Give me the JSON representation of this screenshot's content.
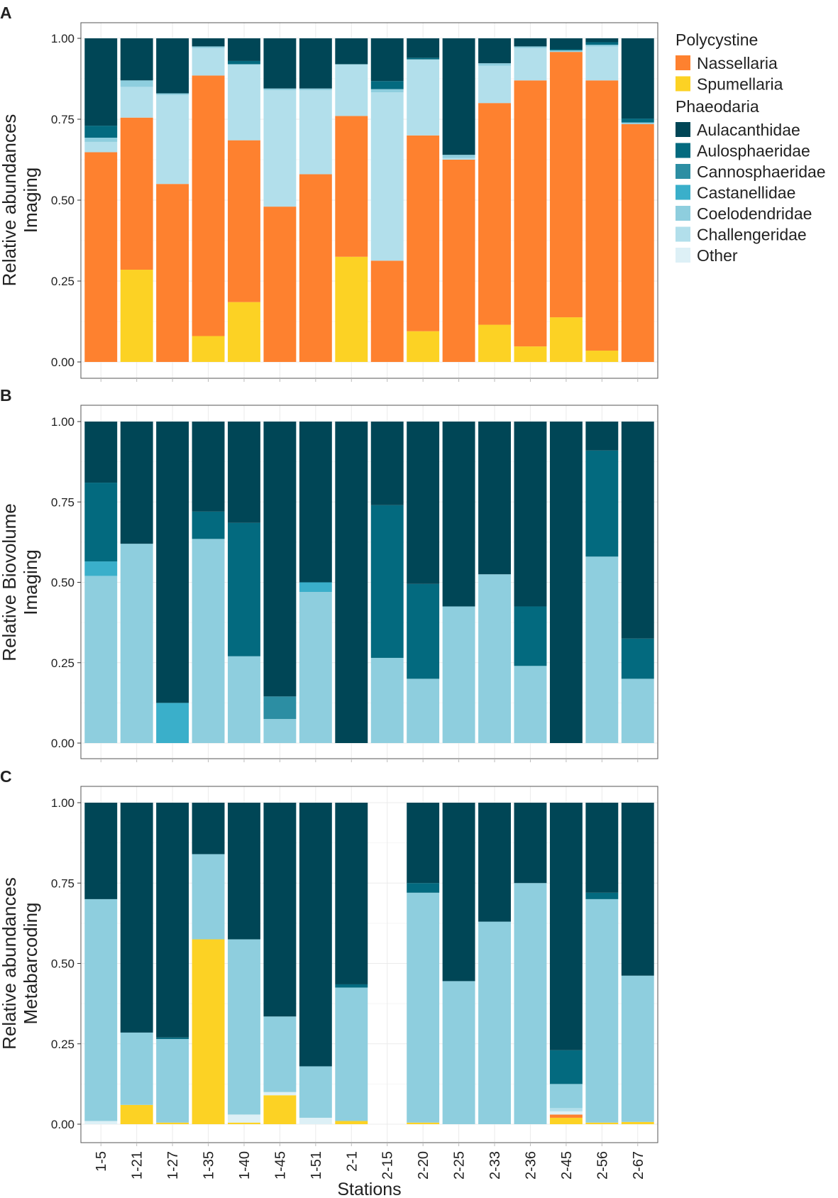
{
  "chart_data": {
    "type": "bar",
    "stacked": true,
    "categories": [
      "1-5",
      "1-21",
      "1-27",
      "1-35",
      "1-40",
      "1-45",
      "1-51",
      "2-1",
      "2-15",
      "2-20",
      "2-25",
      "2-33",
      "2-36",
      "2-45",
      "2-56",
      "2-67"
    ],
    "xlabel": "Stations",
    "ylim": [
      0,
      1
    ],
    "yticks": [
      "0.00",
      "0.25",
      "0.50",
      "0.75",
      "1.00"
    ],
    "stack_order": [
      "Spumellaria",
      "Nassellaria",
      "Other",
      "Challengeridae",
      "Coelodendridae",
      "Castanellidae",
      "Cannosphaeridae",
      "Aulosphaeridae",
      "Aulacanthidae"
    ],
    "legend": {
      "groups": [
        {
          "title": "Polycystine",
          "items": [
            "Nassellaria",
            "Spumellaria"
          ]
        },
        {
          "title": "Phaeodaria",
          "items": [
            "Aulacanthidae",
            "Aulosphaeridae",
            "Cannosphaeridae",
            "Castanellidae",
            "Coelodendridae",
            "Challengeridae",
            "Other"
          ]
        }
      ]
    },
    "colors": {
      "Nassellaria": "#FE812F",
      "Spumellaria": "#FCD224",
      "Aulacanthidae": "#004656",
      "Aulosphaeridae": "#036A7F",
      "Cannosphaeridae": "#2C8EA3",
      "Castanellidae": "#3AAFCA",
      "Coelodendridae": "#8ECEDE",
      "Challengeridae": "#B2DFEB",
      "Other": "#DDF0F6"
    },
    "panels": [
      {
        "letter": "A",
        "ylabel": [
          "Relative abundances",
          "Imaging"
        ],
        "series": [
          {
            "name": "Spumellaria",
            "values": [
              0,
              0.285,
              0,
              0.08,
              0.185,
              0,
              0,
              0.325,
              0,
              0.095,
              0,
              0.115,
              0.048,
              0.138,
              0.035,
              0
            ]
          },
          {
            "name": "Nassellaria",
            "values": [
              0.648,
              0.47,
              0.55,
              0.805,
              0.5,
              0.48,
              0.58,
              0.435,
              0.313,
              0.605,
              0.625,
              0.685,
              0.822,
              0.82,
              0.835,
              0.735
            ]
          },
          {
            "name": "Other",
            "values": [
              0,
              0,
              0,
              0,
              0,
              0,
              0,
              0,
              0,
              0,
              0,
              0,
              0,
              0,
              0,
              0
            ]
          },
          {
            "name": "Challengeridae",
            "values": [
              0.032,
              0.095,
              0.275,
              0.085,
              0.235,
              0.36,
              0.26,
              0.16,
              0.52,
              0.235,
              0.005,
              0.115,
              0.1,
              0,
              0.105,
              0
            ]
          },
          {
            "name": "Coelodendridae",
            "values": [
              0.013,
              0.02,
              0.005,
              0.005,
              0,
              0.005,
              0.005,
              0,
              0.01,
              0,
              0.01,
              0.008,
              0.005,
              0.005,
              0.005,
              0.005
            ]
          },
          {
            "name": "Castanellidae",
            "values": [
              0,
              0,
              0,
              0,
              0,
              0,
              0,
              0,
              0,
              0,
              0,
              0,
              0,
              0,
              0,
              0
            ]
          },
          {
            "name": "Cannosphaeridae",
            "values": [
              0,
              0,
              0,
              0,
              0,
              0,
              0,
              0,
              0,
              0,
              0,
              0,
              0,
              0,
              0,
              0
            ]
          },
          {
            "name": "Aulosphaeridae",
            "values": [
              0.037,
              0,
              0,
              0,
              0.01,
              0,
              0,
              0,
              0.025,
              0.005,
              0,
              0,
              0,
              0.003,
              0.008,
              0.012
            ]
          },
          {
            "name": "Aulacanthidae",
            "values": [
              0.27,
              0.13,
              0.17,
              0.025,
              0.07,
              0.155,
              0.155,
              0.08,
              0.132,
              0.06,
              0.36,
              0.077,
              0.025,
              0.034,
              0.012,
              0.248
            ]
          }
        ]
      },
      {
        "letter": "B",
        "ylabel": [
          "Relative Biovolume",
          "Imaging"
        ],
        "series": [
          {
            "name": "Spumellaria",
            "values": [
              0,
              0,
              0,
              0,
              0,
              0,
              0,
              0,
              0,
              0,
              0,
              0,
              0,
              0,
              0,
              0
            ]
          },
          {
            "name": "Nassellaria",
            "values": [
              0,
              0,
              0,
              0,
              0,
              0,
              0,
              0,
              0,
              0,
              0,
              0,
              0,
              0,
              0,
              0
            ]
          },
          {
            "name": "Other",
            "values": [
              0,
              0,
              0,
              0,
              0,
              0,
              0,
              0,
              0,
              0,
              0,
              0,
              0,
              0,
              0,
              0
            ]
          },
          {
            "name": "Challengeridae",
            "values": [
              0,
              0,
              0,
              0,
              0,
              0,
              0,
              0,
              0,
              0,
              0,
              0,
              0,
              0,
              0,
              0
            ]
          },
          {
            "name": "Coelodendridae",
            "values": [
              0.52,
              0.62,
              0,
              0.635,
              0.27,
              0.075,
              0.47,
              0,
              0.265,
              0.2,
              0.425,
              0.525,
              0.24,
              0,
              0.58,
              0.2
            ]
          },
          {
            "name": "Castanellidae",
            "values": [
              0.045,
              0,
              0.125,
              0,
              0,
              0,
              0.03,
              0,
              0,
              0,
              0,
              0,
              0,
              0,
              0,
              0
            ]
          },
          {
            "name": "Cannosphaeridae",
            "values": [
              0,
              0,
              0,
              0,
              0,
              0.07,
              0,
              0,
              0,
              0,
              0,
              0,
              0,
              0,
              0,
              0
            ]
          },
          {
            "name": "Aulosphaeridae",
            "values": [
              0.245,
              0,
              0,
              0.085,
              0.415,
              0,
              0,
              0,
              0.475,
              0.295,
              0,
              0,
              0.185,
              0,
              0.33,
              0.125
            ]
          },
          {
            "name": "Aulacanthidae",
            "values": [
              0.19,
              0.38,
              0.875,
              0.28,
              0.315,
              0.855,
              0.5,
              1.0,
              0.26,
              0.505,
              0.575,
              0.475,
              0.575,
              1.0,
              0.09,
              0.675
            ]
          }
        ]
      },
      {
        "letter": "C",
        "ylabel": [
          "Relative abundances",
          "Metabarcoding"
        ],
        "series": [
          {
            "name": "Spumellaria",
            "values": [
              0,
              0.06,
              0.005,
              0.575,
              0.005,
              0.09,
              0,
              0.01,
              0,
              0.005,
              0,
              0,
              0,
              0.02,
              0.005,
              0.007
            ]
          },
          {
            "name": "Nassellaria",
            "values": [
              0,
              0,
              0,
              0,
              0,
              0,
              0,
              0,
              0,
              0,
              0,
              0,
              0,
              0.01,
              0,
              0
            ]
          },
          {
            "name": "Other",
            "values": [
              0.01,
              0,
              0,
              0,
              0.025,
              0.01,
              0.02,
              0,
              0,
              0,
              0,
              0,
              0,
              0.01,
              0,
              0
            ]
          },
          {
            "name": "Challengeridae",
            "values": [
              0,
              0,
              0,
              0,
              0,
              0,
              0,
              0,
              0,
              0,
              0,
              0,
              0,
              0.01,
              0,
              0
            ]
          },
          {
            "name": "Coelodendridae",
            "values": [
              0.69,
              0.225,
              0.26,
              0.265,
              0.545,
              0.235,
              0.16,
              0.415,
              0,
              0.715,
              0.445,
              0.63,
              0.75,
              0.075,
              0.695,
              0.455
            ]
          },
          {
            "name": "Castanellidae",
            "values": [
              0,
              0,
              0,
              0,
              0,
              0,
              0,
              0,
              0,
              0,
              0,
              0,
              0,
              0,
              0,
              0
            ]
          },
          {
            "name": "Cannosphaeridae",
            "values": [
              0,
              0,
              0,
              0,
              0,
              0,
              0,
              0,
              0,
              0,
              0,
              0,
              0,
              0,
              0,
              0
            ]
          },
          {
            "name": "Aulosphaeridae",
            "values": [
              0,
              0,
              0.005,
              0,
              0,
              0,
              0,
              0.01,
              0,
              0.03,
              0,
              0,
              0,
              0.105,
              0.02,
              0
            ]
          },
          {
            "name": "Aulacanthidae",
            "values": [
              0.3,
              0.715,
              0.73,
              0.16,
              0.425,
              0.665,
              0.82,
              0.565,
              0,
              0.25,
              0.555,
              0.37,
              0.25,
              0.77,
              0.28,
              0.538
            ]
          }
        ]
      }
    ]
  }
}
